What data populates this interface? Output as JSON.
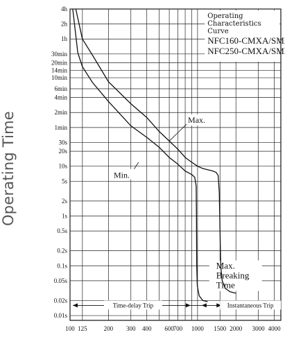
{
  "chart_data": {
    "type": "line",
    "title": "",
    "xlabel": "",
    "ylabel": "Operating Time",
    "x_scale": "log",
    "y_scale": "log",
    "xlim": [
      100,
      4500
    ],
    "ylim_seconds": [
      0.008,
      14400
    ],
    "grid": true,
    "legend_box": [
      "Operating",
      "Characteristics",
      "Curve",
      "NFC160-CMXA/SMXA",
      "NFC250-CMXA/SMXA"
    ],
    "x_ticks": [
      {
        "v": 100,
        "label": "100"
      },
      {
        "v": 125,
        "label": "125"
      },
      {
        "v": 200,
        "label": "200"
      },
      {
        "v": 300,
        "label": "300"
      },
      {
        "v": 400,
        "label": "400"
      },
      {
        "v": 600,
        "label": "600"
      },
      {
        "v": 700,
        "label": "700"
      },
      {
        "v": 1000,
        "label": "1000"
      },
      {
        "v": 1500,
        "label": "1500"
      },
      {
        "v": 2000,
        "label": "2000"
      },
      {
        "v": 3000,
        "label": "3000"
      },
      {
        "v": 4000,
        "label": "4000"
      }
    ],
    "x_minor_grid": [
      500,
      800,
      900
    ],
    "y_ticks": [
      {
        "v": 14400,
        "label": "4h"
      },
      {
        "v": 7200,
        "label": "2h"
      },
      {
        "v": 3600,
        "label": "1h"
      },
      {
        "v": 1800,
        "label": "30min"
      },
      {
        "v": 1200,
        "label": "20min"
      },
      {
        "v": 840,
        "label": "14min"
      },
      {
        "v": 600,
        "label": "10min"
      },
      {
        "v": 360,
        "label": "6min"
      },
      {
        "v": 240,
        "label": "4min"
      },
      {
        "v": 120,
        "label": "2min"
      },
      {
        "v": 60,
        "label": "1min"
      },
      {
        "v": 30,
        "label": "30s"
      },
      {
        "v": 20,
        "label": "20s"
      },
      {
        "v": 10,
        "label": "10s"
      },
      {
        "v": 5,
        "label": "5s"
      },
      {
        "v": 2,
        "label": "2s"
      },
      {
        "v": 1,
        "label": "1s"
      },
      {
        "v": 0.5,
        "label": "0.5s"
      },
      {
        "v": 0.2,
        "label": "0.2s"
      },
      {
        "v": 0.1,
        "label": "0.1s"
      },
      {
        "v": 0.05,
        "label": "0.05s"
      },
      {
        "v": 0.02,
        "label": "0.02s"
      },
      {
        "v": 0.01,
        "label": "0.01s"
      }
    ],
    "series": [
      {
        "name": "Max.",
        "points": [
          [
            111,
            14400
          ],
          [
            125,
            3600
          ],
          [
            150,
            1700
          ],
          [
            200,
            500
          ],
          [
            300,
            180
          ],
          [
            400,
            95
          ],
          [
            500,
            50
          ],
          [
            600,
            32
          ],
          [
            700,
            22
          ],
          [
            800,
            15
          ],
          [
            900,
            12
          ],
          [
            1000,
            10
          ],
          [
            1100,
            9
          ],
          [
            1200,
            8.5
          ],
          [
            1300,
            8.1
          ],
          [
            1400,
            7.5
          ],
          [
            1450,
            6.5
          ],
          [
            1480,
            3
          ],
          [
            1500,
            0.5
          ],
          [
            1520,
            0.1
          ],
          [
            1560,
            0.05
          ],
          [
            1650,
            0.035
          ],
          [
            1800,
            0.03
          ],
          [
            2000,
            0.028
          ]
        ]
      },
      {
        "name": "Min.",
        "points": [
          [
            105,
            14400
          ],
          [
            115,
            1900
          ],
          [
            125,
            1000
          ],
          [
            150,
            480
          ],
          [
            200,
            200
          ],
          [
            300,
            65
          ],
          [
            400,
            38
          ],
          [
            500,
            24
          ],
          [
            600,
            15
          ],
          [
            700,
            11
          ],
          [
            800,
            8
          ],
          [
            900,
            6.8
          ],
          [
            950,
            6
          ],
          [
            975,
            4
          ],
          [
            980,
            1
          ],
          [
            985,
            0.1
          ],
          [
            995,
            0.04
          ],
          [
            1030,
            0.025
          ],
          [
            1100,
            0.02
          ],
          [
            1200,
            0.019
          ]
        ]
      }
    ],
    "annotations": {
      "max": "Max.",
      "min": "Min.",
      "breaking": [
        "Max.",
        "Breaking",
        "Time"
      ],
      "time_delay": "Time-delay Trip",
      "instantaneous": "Instantaneous Trip"
    },
    "zones": {
      "time_delay_end": 975,
      "instantaneous_start": 1500
    }
  }
}
